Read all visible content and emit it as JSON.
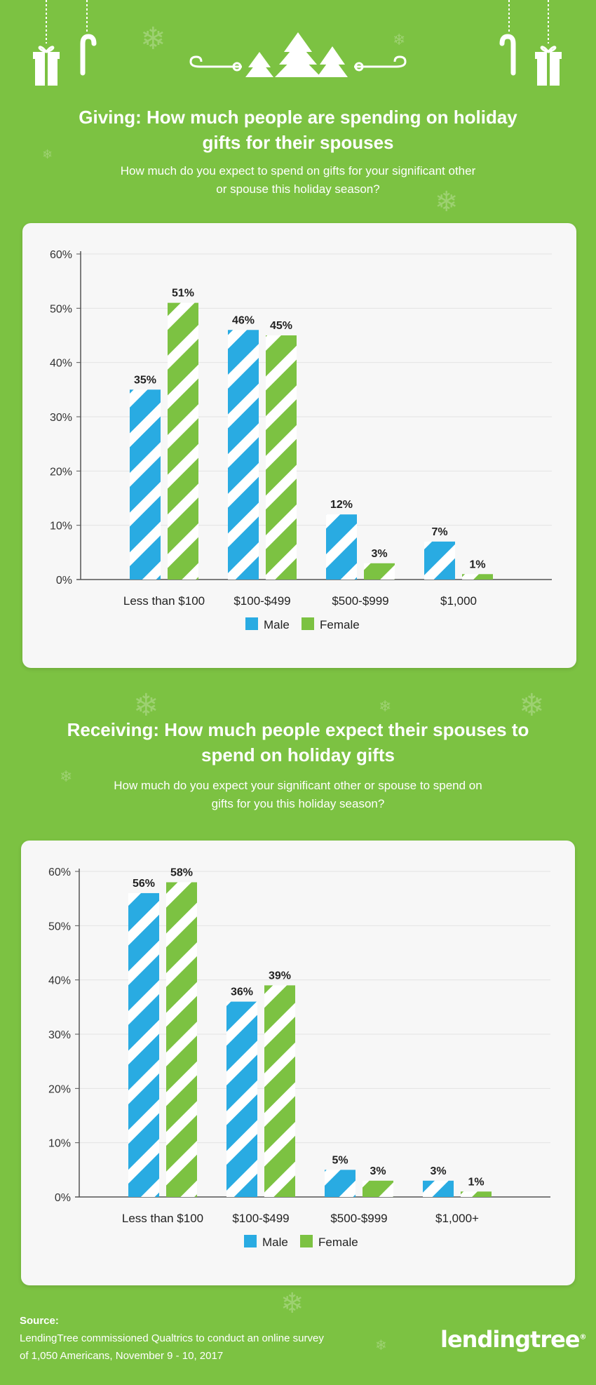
{
  "colors": {
    "background": "#7cc242",
    "male": "#29abe2",
    "female": "#7cc242",
    "card": "#f7f7f7"
  },
  "section1": {
    "title_line1": "Giving: How much people are spending on holiday",
    "title_line2": "gifts for their spouses",
    "subtitle_line1": "How much do you expect to spend on gifts for your significant other",
    "subtitle_line2": "or spouse this holiday season?"
  },
  "section2": {
    "title_line1": "Receiving: How much people expect their spouses to",
    "title_line2": "spend on holiday gifts",
    "subtitle_line1": "How much do you expect your significant other or spouse to spend on",
    "subtitle_line2": "gifts for you this holiday season?"
  },
  "chart_data": [
    {
      "type": "bar",
      "categories": [
        "Less than $100",
        "$100-$499",
        "$500-$999",
        "$1,000"
      ],
      "series": [
        {
          "name": "Male",
          "values": [
            35,
            46,
            12,
            7
          ]
        },
        {
          "name": "Female",
          "values": [
            51,
            45,
            3,
            1
          ]
        }
      ],
      "value_labels": {
        "Male": [
          "35%",
          "46%",
          "12%",
          "7%"
        ],
        "Female": [
          "51%",
          "45%",
          "3%",
          "1%"
        ]
      },
      "yticks": [
        "0%",
        "10%",
        "20%",
        "30%",
        "40%",
        "50%",
        "60%"
      ],
      "ylim": [
        0,
        60
      ],
      "grid": true,
      "legend": "bottom-center"
    },
    {
      "type": "bar",
      "categories": [
        "Less than $100",
        "$100-$499",
        "$500-$999",
        "$1,000+"
      ],
      "series": [
        {
          "name": "Male",
          "values": [
            56,
            36,
            5,
            3
          ]
        },
        {
          "name": "Female",
          "values": [
            58,
            39,
            3,
            1
          ]
        }
      ],
      "value_labels": {
        "Male": [
          "56%",
          "36%",
          "5%",
          "3%"
        ],
        "Female": [
          "58%",
          "39%",
          "3%",
          "1%"
        ]
      },
      "yticks": [
        "0%",
        "10%",
        "20%",
        "30%",
        "40%",
        "50%",
        "60%"
      ],
      "ylim": [
        0,
        60
      ],
      "grid": true,
      "legend": "bottom-center"
    }
  ],
  "footer": {
    "source_label": "Source:",
    "source_line1": "LendingTree commissioned Qualtrics to conduct an online survey",
    "source_line2": "of 1,050 Americans, November 9 - 10, 2017",
    "logo_text": "lendingtree",
    "logo_mark": "®"
  },
  "icons": [
    "gift-icon",
    "candy-cane-icon",
    "christmas-tree-icon",
    "swirl-icon",
    "snowflake-icon"
  ]
}
